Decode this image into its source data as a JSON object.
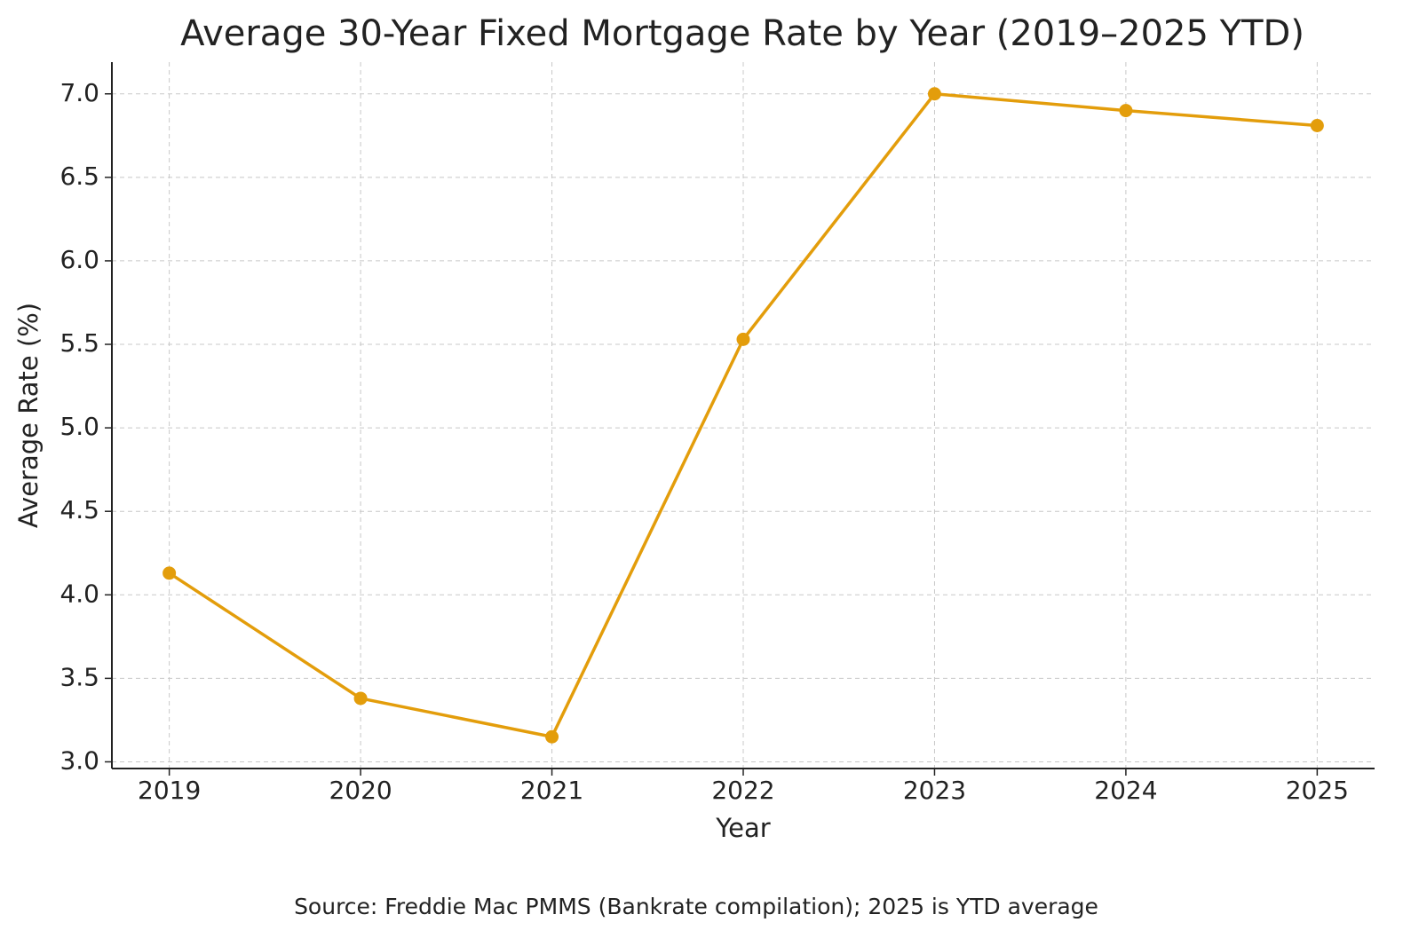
{
  "chart_data": {
    "type": "line",
    "title": "Average 30-Year Fixed Mortgage Rate by Year (2019–2025 YTD)",
    "x_label": "Year",
    "y_label": "Average Rate (%)",
    "note": "Source: Freddie Mac PMMS (Bankrate compilation); 2025 is YTD average",
    "x": [
      2019,
      2020,
      2021,
      2022,
      2023,
      2024,
      2025
    ],
    "values": [
      4.13,
      3.38,
      3.15,
      5.53,
      7.0,
      6.9,
      6.81
    ],
    "color": "#e39d0b",
    "xlim": [
      2018.7,
      2025.3
    ],
    "xticks": [
      2019,
      2020,
      2021,
      2022,
      2023,
      2024,
      2025
    ],
    "ylim": [
      2.96,
      7.19
    ],
    "yticks": [
      {
        "value": 3,
        "label": "3.0"
      },
      {
        "value": 3.5,
        "label": "3.5"
      },
      {
        "value": 4,
        "label": "4.0"
      },
      {
        "value": 4.5,
        "label": "4.5"
      },
      {
        "value": 5,
        "label": "5.0"
      },
      {
        "value": 5.5,
        "label": "5.5"
      },
      {
        "value": 6,
        "label": "6.0"
      },
      {
        "value": 6.5,
        "label": "6.5"
      },
      {
        "value": 7,
        "label": "7.0"
      }
    ],
    "grid": true
  }
}
